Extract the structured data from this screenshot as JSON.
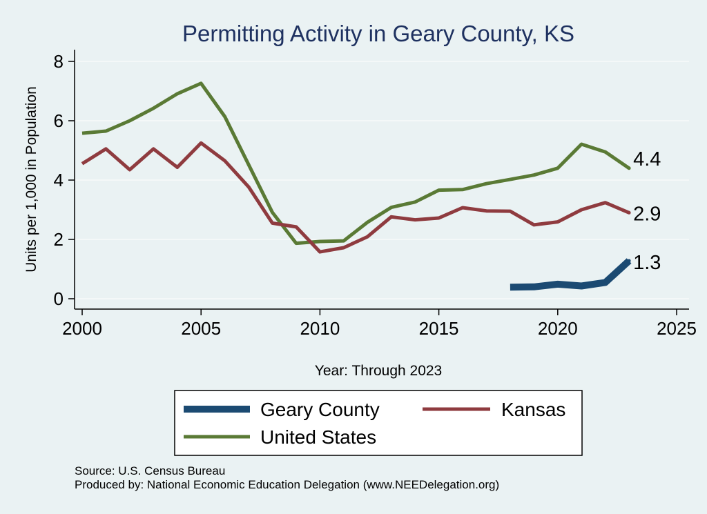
{
  "chart_data": {
    "type": "line",
    "title": "Permitting Activity in Geary County, KS",
    "xlabel": "Year: Through 2023",
    "ylabel": "Units per 1,000 in Population",
    "xlim": [
      2000,
      2025
    ],
    "ylim": [
      0,
      8
    ],
    "xticks": [
      2000,
      2005,
      2010,
      2015,
      2020,
      2025
    ],
    "yticks": [
      0,
      2,
      4,
      6,
      8
    ],
    "grid": true,
    "legend_position": "bottom",
    "series": [
      {
        "name": "Geary County",
        "color": "#1b4a72",
        "x": [
          2018,
          2019,
          2020,
          2021,
          2022,
          2023
        ],
        "values": [
          0.39,
          0.4,
          0.49,
          0.43,
          0.55,
          1.28
        ],
        "end_label": "1.3"
      },
      {
        "name": "Kansas",
        "color": "#8f3b3f",
        "x": [
          2000,
          2001,
          2002,
          2003,
          2004,
          2005,
          2006,
          2007,
          2008,
          2009,
          2010,
          2011,
          2012,
          2013,
          2014,
          2015,
          2016,
          2017,
          2018,
          2019,
          2020,
          2021,
          2022,
          2023
        ],
        "values": [
          4.55,
          5.05,
          4.35,
          5.05,
          4.43,
          5.25,
          4.65,
          3.77,
          2.55,
          2.42,
          1.58,
          1.72,
          2.09,
          2.76,
          2.66,
          2.72,
          3.07,
          2.96,
          2.95,
          2.49,
          2.59,
          3.0,
          3.24,
          2.9
        ],
        "end_label": "2.9"
      },
      {
        "name": "United States",
        "color": "#5a7a35",
        "x": [
          2000,
          2001,
          2002,
          2003,
          2004,
          2005,
          2006,
          2007,
          2008,
          2009,
          2010,
          2011,
          2012,
          2013,
          2014,
          2015,
          2016,
          2017,
          2018,
          2019,
          2020,
          2021,
          2022,
          2023
        ],
        "values": [
          5.58,
          5.65,
          6.0,
          6.42,
          6.91,
          7.26,
          6.14,
          4.52,
          2.91,
          1.87,
          1.93,
          1.95,
          2.58,
          3.08,
          3.26,
          3.66,
          3.68,
          3.88,
          4.02,
          4.17,
          4.4,
          5.21,
          4.95,
          4.4
        ],
        "end_label": "4.4"
      }
    ]
  },
  "legend": {
    "items": [
      {
        "label": "Geary County",
        "color": "#1b4a72"
      },
      {
        "label": "Kansas",
        "color": "#8f3b3f"
      },
      {
        "label": "United States",
        "color": "#5a7a35"
      }
    ]
  },
  "notes": {
    "source": "Source: U.S. Census Bureau",
    "produced_by": "Produced by: National Economic Education Delegation (www.NEEDelegation.org)"
  }
}
